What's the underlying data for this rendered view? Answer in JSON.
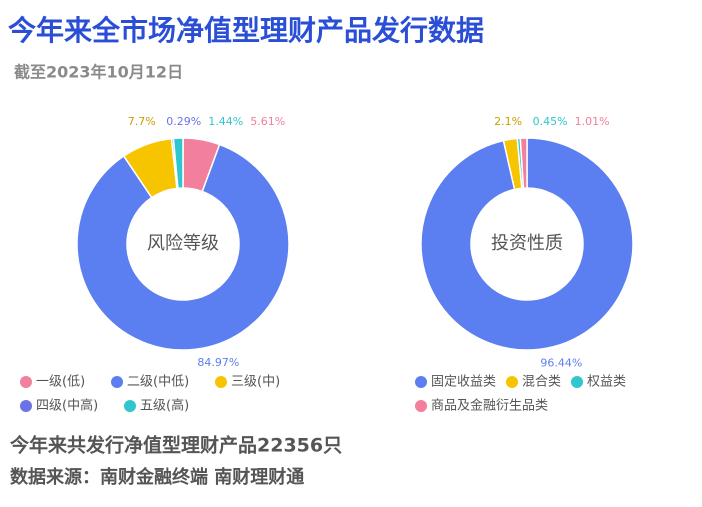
{
  "title": "今年来全市场净值型理财产品发行数据",
  "subtitle": "截至2023年10月12日",
  "chart_data": [
    {
      "type": "pie",
      "center_label": "风险等级",
      "categories": [
        "一级(低)",
        "二级(中低)",
        "三级(中)",
        "四级(中高)",
        "五级(高)"
      ],
      "values": [
        5.61,
        84.97,
        7.7,
        0.29,
        1.44
      ],
      "value_labels": [
        "5.61%",
        "84.97%",
        "7.7%",
        "0.29%",
        "1.44%"
      ],
      "colors": [
        "#f27f9b",
        "#5b7ff0",
        "#f7c400",
        "#6a73e6",
        "#2fc6cf"
      ]
    },
    {
      "type": "pie",
      "center_label": "投资性质",
      "categories": [
        "固定收益类",
        "混合类",
        "权益类",
        "商品及金融衍生品类"
      ],
      "values": [
        96.44,
        2.1,
        0.45,
        1.01
      ],
      "value_labels": [
        "96.44%",
        "2.1%",
        "0.45%",
        "1.01%"
      ],
      "colors": [
        "#5b7ff0",
        "#f7c400",
        "#2fc6cf",
        "#f27f9b"
      ]
    }
  ],
  "footer": [
    "今年来共发行净值型理财产品22356只",
    "数据来源：南财金融终端 南财理财通"
  ]
}
